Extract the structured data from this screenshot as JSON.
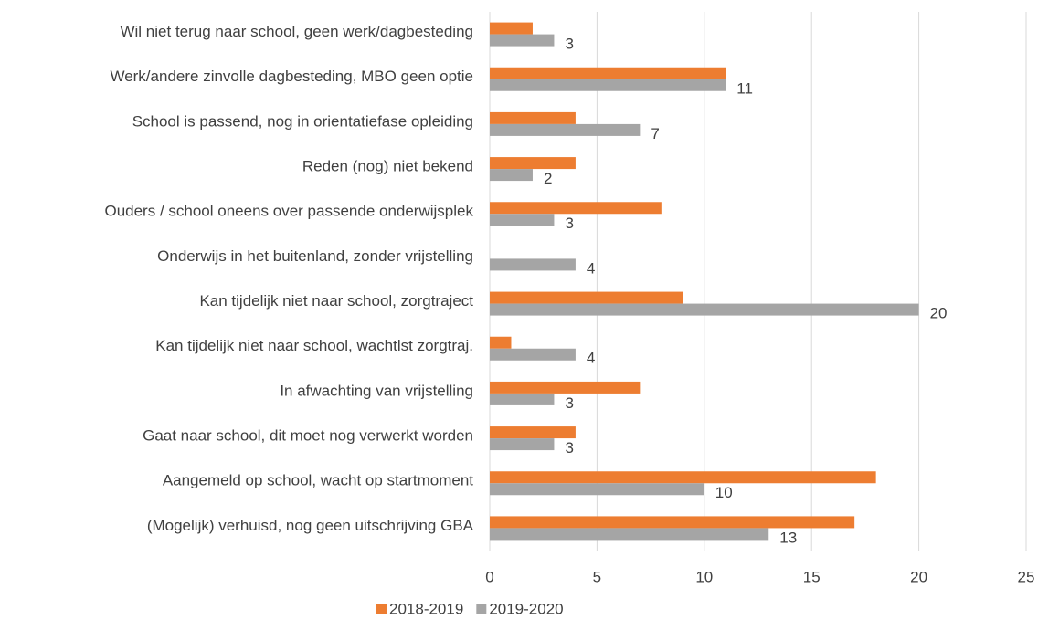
{
  "chart_data": {
    "type": "barh",
    "categories": [
      "Wil niet terug naar school, geen werk/dagbesteding",
      "Werk/andere zinvolle dagbesteding, MBO geen optie",
      "School is passend, nog in orientatiefase opleiding",
      "Reden (nog) niet bekend",
      "Ouders / school oneens over passende onderwijsplek",
      "Onderwijs in het buitenland, zonder vrijstelling",
      "Kan tijdelijk niet naar school, zorgtraject",
      "Kan tijdelijk niet naar school, wachtlst zorgtraj.",
      "In afwachting van vrijstelling",
      "Gaat naar school, dit moet nog verwerkt worden",
      "Aangemeld op school, wacht op startmoment",
      "(Mogelijk) verhuisd, nog geen uitschrijving GBA"
    ],
    "series": [
      {
        "name": "2018-2019",
        "color": "#ed7d31",
        "values": [
          2,
          11,
          4,
          4,
          8,
          0,
          9,
          1,
          7,
          4,
          18,
          17
        ],
        "data_labels": false
      },
      {
        "name": "2019-2020",
        "color": "#a5a5a5",
        "values": [
          3,
          11,
          7,
          2,
          3,
          4,
          20,
          4,
          3,
          3,
          10,
          13
        ],
        "data_labels": true
      }
    ],
    "xlim": [
      0,
      25
    ],
    "xticks": [
      0,
      5,
      10,
      15,
      20,
      25
    ],
    "grid": true,
    "legend": "bottom"
  }
}
